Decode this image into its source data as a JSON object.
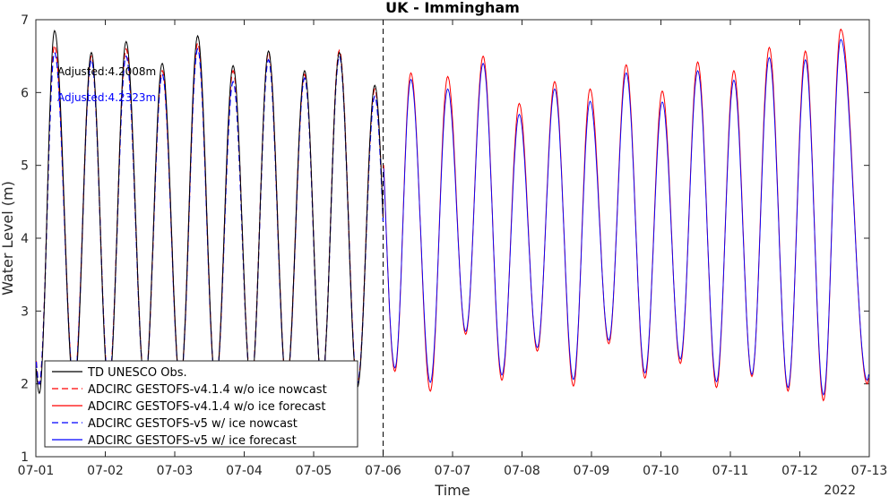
{
  "chart_data": {
    "type": "line",
    "title": "UK - Immingham",
    "xlabel": "Time",
    "ylabel": "Water Level (m)",
    "year_label": "2022",
    "xlim": [
      "07-01",
      "07-13"
    ],
    "ylim": [
      1,
      7
    ],
    "x_ticks": [
      "07-01",
      "07-02",
      "07-03",
      "07-04",
      "07-05",
      "07-06",
      "07-07",
      "07-08",
      "07-09",
      "07-10",
      "07-11",
      "07-12",
      "07-13"
    ],
    "y_ticks": [
      1,
      2,
      3,
      4,
      5,
      6,
      7
    ],
    "nowcast_forecast_divider": "07-06",
    "annotations": [
      {
        "text": "Adjusted:4.2008m",
        "color": "#000000"
      },
      {
        "text": "Adjusted:4.2323m",
        "color": "#0000ff"
      }
    ],
    "legend_position": "bottom-left",
    "series": [
      {
        "name": "TD UNESCO Obs.",
        "color": "#000000",
        "style": "solid",
        "x_range": [
          "07-01",
          "07-06"
        ],
        "highs": [
          [
            0.27,
            6.85
          ],
          [
            0.8,
            6.55
          ],
          [
            1.3,
            6.7
          ],
          [
            1.82,
            6.4
          ],
          [
            2.33,
            6.78
          ],
          [
            2.84,
            6.37
          ],
          [
            3.35,
            6.57
          ],
          [
            3.87,
            6.3
          ],
          [
            4.37,
            6.55
          ],
          [
            4.88,
            6.1
          ]
        ],
        "lows": [
          [
            0.05,
            1.87
          ],
          [
            0.55,
            1.9
          ],
          [
            1.05,
            1.92
          ],
          [
            1.57,
            1.98
          ],
          [
            2.08,
            2.0
          ],
          [
            2.59,
            2.0
          ],
          [
            3.1,
            1.97
          ],
          [
            3.61,
            2.0
          ],
          [
            4.12,
            1.98
          ],
          [
            4.63,
            1.95
          ]
        ]
      },
      {
        "name": "ADCIRC GESTOFS-v4.1.4 w/o ice nowcast",
        "color": "#ff0000",
        "style": "dashed",
        "x_range": [
          "07-01",
          "07-06"
        ],
        "highs": [
          [
            0.27,
            6.65
          ],
          [
            0.8,
            6.5
          ],
          [
            1.3,
            6.6
          ],
          [
            1.82,
            6.3
          ],
          [
            2.33,
            6.68
          ],
          [
            2.84,
            6.3
          ],
          [
            3.35,
            6.55
          ],
          [
            3.87,
            6.25
          ],
          [
            4.37,
            6.58
          ],
          [
            4.88,
            6.05
          ]
        ],
        "lows": [
          [
            0.05,
            2.0
          ],
          [
            0.55,
            2.0
          ],
          [
            1.05,
            2.0
          ],
          [
            1.57,
            2.0
          ],
          [
            2.08,
            2.0
          ],
          [
            2.59,
            2.0
          ],
          [
            3.1,
            2.0
          ],
          [
            3.61,
            2.0
          ],
          [
            4.12,
            2.0
          ],
          [
            4.63,
            2.0
          ]
        ]
      },
      {
        "name": "ADCIRC GESTOFS-v4.1.4 w/o ice forecast",
        "color": "#ff0000",
        "style": "solid",
        "x_range": [
          "07-06",
          "07-13"
        ],
        "highs": [
          [
            5.4,
            6.27
          ],
          [
            5.93,
            6.22
          ],
          [
            6.44,
            6.5
          ],
          [
            6.96,
            5.85
          ],
          [
            7.47,
            6.15
          ],
          [
            7.98,
            6.05
          ],
          [
            8.5,
            6.38
          ],
          [
            9.02,
            6.02
          ],
          [
            9.53,
            6.42
          ],
          [
            10.05,
            6.3
          ],
          [
            10.56,
            6.62
          ],
          [
            11.08,
            6.57
          ],
          [
            11.59,
            6.87
          ]
        ],
        "lows": [
          [
            5.17,
            2.17
          ],
          [
            5.68,
            1.9
          ],
          [
            6.19,
            2.68
          ],
          [
            6.71,
            2.05
          ],
          [
            7.22,
            2.45
          ],
          [
            7.74,
            1.97
          ],
          [
            8.25,
            2.55
          ],
          [
            8.77,
            2.08
          ],
          [
            9.28,
            2.28
          ],
          [
            9.8,
            1.95
          ],
          [
            10.31,
            2.1
          ],
          [
            10.83,
            1.9
          ],
          [
            11.34,
            1.77
          ],
          [
            11.97,
            2.0
          ]
        ]
      },
      {
        "name": "ADCIRC GESTOFS-v5 w/ ice nowcast",
        "color": "#0000ff",
        "style": "dashed",
        "x_range": [
          "07-01",
          "07-06"
        ],
        "highs": [
          [
            0.27,
            6.55
          ],
          [
            0.8,
            6.45
          ],
          [
            1.3,
            6.5
          ],
          [
            1.82,
            6.25
          ],
          [
            2.33,
            6.6
          ],
          [
            2.84,
            6.15
          ],
          [
            3.35,
            6.45
          ],
          [
            3.87,
            6.2
          ],
          [
            4.37,
            6.5
          ],
          [
            4.88,
            5.95
          ]
        ],
        "lows": [
          [
            0.05,
            2.0
          ],
          [
            0.55,
            2.0
          ],
          [
            1.05,
            2.0
          ],
          [
            1.57,
            2.0
          ],
          [
            2.08,
            2.0
          ],
          [
            2.59,
            2.0
          ],
          [
            3.1,
            2.0
          ],
          [
            3.61,
            2.0
          ],
          [
            4.12,
            2.0
          ],
          [
            4.63,
            2.0
          ]
        ]
      },
      {
        "name": "ADCIRC GESTOFS-v5 w/ ice forecast",
        "color": "#0000ff",
        "style": "solid",
        "x_range": [
          "07-06",
          "07-13"
        ],
        "highs": [
          [
            5.4,
            6.18
          ],
          [
            5.93,
            6.05
          ],
          [
            6.44,
            6.4
          ],
          [
            6.96,
            5.7
          ],
          [
            7.47,
            6.05
          ],
          [
            7.98,
            5.88
          ],
          [
            8.5,
            6.27
          ],
          [
            9.02,
            5.87
          ],
          [
            9.53,
            6.3
          ],
          [
            10.05,
            6.17
          ],
          [
            10.56,
            6.48
          ],
          [
            11.08,
            6.45
          ],
          [
            11.59,
            6.73
          ]
        ],
        "lows": [
          [
            5.17,
            2.22
          ],
          [
            5.68,
            2.02
          ],
          [
            6.19,
            2.72
          ],
          [
            6.71,
            2.12
          ],
          [
            7.22,
            2.5
          ],
          [
            7.74,
            2.06
          ],
          [
            8.25,
            2.6
          ],
          [
            8.77,
            2.15
          ],
          [
            9.28,
            2.34
          ],
          [
            9.8,
            2.03
          ],
          [
            10.31,
            2.13
          ],
          [
            10.83,
            1.95
          ],
          [
            11.34,
            1.85
          ],
          [
            11.97,
            2.05
          ]
        ]
      }
    ]
  }
}
